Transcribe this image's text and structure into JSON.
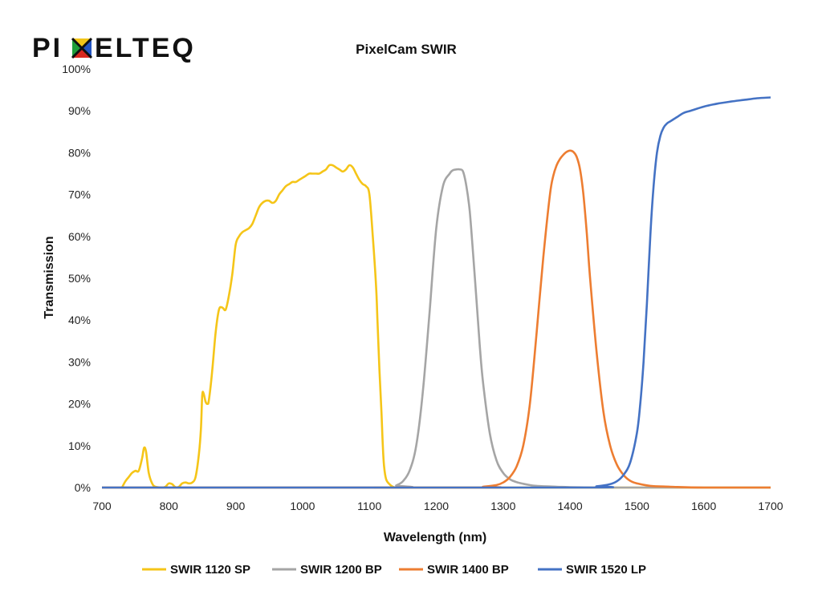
{
  "logo": {
    "text": "PIXELTEQ",
    "letters_before": "PI",
    "letters_after": "ELTEQ"
  },
  "chart_data": {
    "type": "line",
    "title": "PixelCam SWIR",
    "xlabel": "Wavelength (nm)",
    "ylabel": "Transmission",
    "xlim": [
      700,
      1700
    ],
    "ylim": [
      0,
      100
    ],
    "xticks": [
      700,
      800,
      900,
      1000,
      1100,
      1200,
      1300,
      1400,
      1500,
      1600,
      1700
    ],
    "xtick_labels": [
      "700",
      "800",
      "900",
      "1000",
      "1100",
      "1200",
      "1300",
      "1400",
      "1500",
      "1600",
      "1700"
    ],
    "yticks": [
      0,
      10,
      20,
      30,
      40,
      50,
      60,
      70,
      80,
      90,
      100
    ],
    "ytick_labels": [
      "0%",
      "10%",
      "20%",
      "30%",
      "40%",
      "50%",
      "60%",
      "70%",
      "80%",
      "90%",
      "100%"
    ],
    "grid": false,
    "legend": "bottom",
    "series": [
      {
        "name": "SWIR 1120 SP",
        "color": "#F5C518",
        "x": [
          730,
          735,
          740,
          745,
          750,
          755,
          760,
          763,
          766,
          770,
          775,
          780,
          790,
          795,
          800,
          805,
          810,
          815,
          820,
          825,
          830,
          835,
          840,
          845,
          848,
          850,
          852,
          855,
          858,
          860,
          865,
          870,
          875,
          880,
          885,
          890,
          895,
          900,
          905,
          910,
          915,
          920,
          925,
          930,
          935,
          940,
          945,
          950,
          955,
          960,
          965,
          970,
          975,
          980,
          985,
          990,
          995,
          1000,
          1005,
          1010,
          1015,
          1020,
          1025,
          1030,
          1035,
          1040,
          1045,
          1050,
          1055,
          1060,
          1065,
          1070,
          1075,
          1080,
          1085,
          1090,
          1095,
          1100,
          1105,
          1110,
          1112,
          1115,
          1118,
          1120,
          1122,
          1125,
          1130,
          1135,
          1140,
          1145,
          1150,
          1700
        ],
        "y": [
          0,
          1.5,
          2.5,
          3.5,
          4,
          4,
          7,
          9.5,
          8.5,
          3.5,
          1,
          0.2,
          0,
          0.2,
          1,
          0.8,
          0.1,
          0.2,
          1,
          1.2,
          1,
          1.2,
          2.5,
          8,
          14,
          22,
          22.5,
          20.5,
          20,
          21,
          28,
          37,
          42.5,
          43,
          42.5,
          46,
          51,
          58,
          60,
          61,
          61.5,
          62,
          63,
          65,
          67,
          68,
          68.5,
          68.5,
          68,
          68.5,
          70,
          71,
          72,
          72.5,
          73,
          73,
          73.5,
          74,
          74.5,
          75,
          75,
          75,
          75,
          75.5,
          76,
          77,
          77,
          76.5,
          76,
          75.5,
          76,
          77,
          76.5,
          75,
          73.5,
          72.5,
          72,
          70,
          60,
          48,
          40,
          28,
          18,
          10,
          5,
          2,
          0.8,
          0.2,
          0,
          0,
          0,
          0
        ]
      },
      {
        "name": "SWIR 1200 BP",
        "color": "#A5A5A5",
        "x": [
          700,
          1130,
          1140,
          1150,
          1160,
          1170,
          1180,
          1190,
          1200,
          1210,
          1220,
          1225,
          1230,
          1235,
          1240,
          1245,
          1250,
          1255,
          1260,
          1265,
          1270,
          1280,
          1290,
          1300,
          1310,
          1320,
          1330,
          1340,
          1350,
          1380,
          1400,
          1450,
          1500,
          1700
        ],
        "y": [
          0,
          0,
          0.5,
          1.5,
          4,
          10,
          23,
          42,
          62,
          72,
          75,
          75.8,
          76,
          76,
          75.5,
          72,
          66,
          56,
          45,
          34,
          25,
          13,
          6.5,
          3.5,
          2,
          1.3,
          0.9,
          0.6,
          0.4,
          0.2,
          0.1,
          0,
          0,
          0
        ]
      },
      {
        "name": "SWIR 1400 BP",
        "color": "#ED7D31",
        "x": [
          700,
          1250,
          1270,
          1290,
          1300,
          1310,
          1320,
          1330,
          1340,
          1350,
          1360,
          1370,
          1375,
          1380,
          1385,
          1390,
          1395,
          1400,
          1405,
          1410,
          1415,
          1420,
          1425,
          1430,
          1440,
          1450,
          1460,
          1470,
          1480,
          1490,
          1500,
          1520,
          1550,
          1600,
          1700
        ],
        "y": [
          0,
          0,
          0.2,
          0.6,
          1.2,
          2.5,
          5,
          10,
          20,
          37,
          55,
          70,
          74.5,
          77,
          78.5,
          79.5,
          80.2,
          80.5,
          80.2,
          79,
          76,
          70,
          61,
          50,
          32,
          18,
          10,
          5.5,
          3,
          1.6,
          1,
          0.4,
          0.2,
          0,
          0
        ]
      },
      {
        "name": "SWIR 1520 LP",
        "color": "#4472C4",
        "x": [
          700,
          1400,
          1440,
          1460,
          1470,
          1480,
          1490,
          1500,
          1505,
          1510,
          1515,
          1520,
          1525,
          1530,
          1535,
          1540,
          1545,
          1550,
          1555,
          1560,
          1570,
          1580,
          1600,
          1620,
          1640,
          1660,
          1680,
          1700
        ],
        "y": [
          0,
          0,
          0.3,
          0.8,
          1.5,
          3,
          6,
          13,
          20,
          30,
          44,
          60,
          72,
          80,
          84,
          86,
          87,
          87.5,
          88,
          88.5,
          89.5,
          90,
          91,
          91.7,
          92.2,
          92.6,
          93,
          93.2
        ]
      }
    ]
  }
}
